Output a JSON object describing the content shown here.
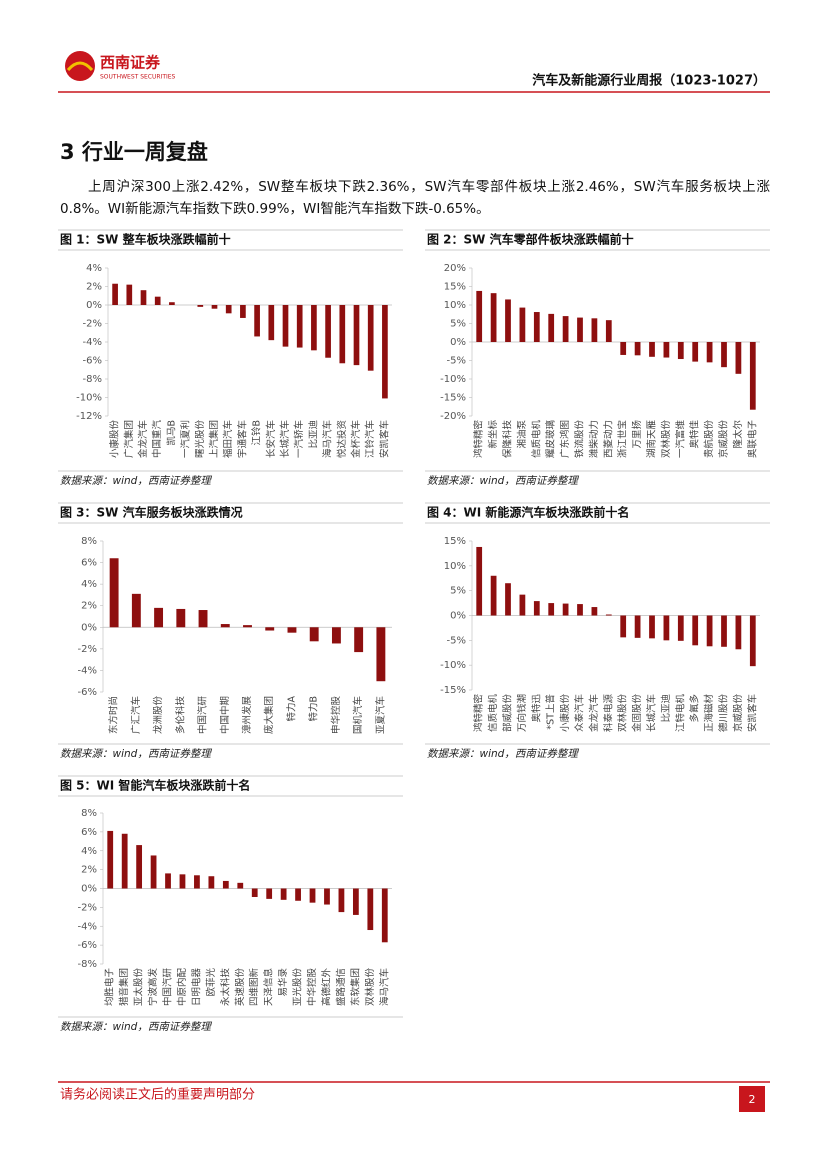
{
  "header": {
    "company": "西南证券",
    "company_en": "SOUTHWEST SECURITIES",
    "report_title": "汽车及新能源行业周报（1023-1027）"
  },
  "section_title": "3 行业一周复盘",
  "paragraph": "上周沪深300上涨2.42%，SW整车板块下跌2.36%，SW汽车零部件板块上涨2.46%，SW汽车服务板块上涨0.8%。WI新能源汽车指数下跌0.99%，WI智能汽车指数下跌-0.65%。",
  "chart_data": [
    {
      "type": "bar",
      "title": "图 1：SW 整车板块涨跌幅前十",
      "color": "#8e0f0f",
      "categories": [
        "小康股份",
        "广汽集团",
        "金龙汽车",
        "中国重汽",
        "凯马B",
        "一汽夏利",
        "曙光股份",
        "上汽集团",
        "福田汽车",
        "宇通客车",
        "江铃B",
        "长安汽车",
        "长城汽车",
        "一汽轿车",
        "比亚迪",
        "海马汽车",
        "悦达投资",
        "金杯汽车",
        "江铃汽车",
        "安凯客车"
      ],
      "values": [
        2.3,
        2.2,
        1.6,
        0.9,
        0.3,
        0,
        -0.2,
        -0.4,
        -0.9,
        -1.4,
        -3.4,
        -3.8,
        -4.5,
        -4.6,
        -4.9,
        -5.7,
        -6.3,
        -6.5,
        -7.1,
        -10.1
      ],
      "ylim": [
        -12,
        4
      ],
      "yticks": [
        {
          "value": -12,
          "label": "-12%"
        },
        {
          "value": -10,
          "label": "-10%"
        },
        {
          "value": -8,
          "label": "-8%"
        },
        {
          "value": -6,
          "label": "-6%"
        },
        {
          "value": -4,
          "label": "-4%"
        },
        {
          "value": -2,
          "label": "-2%"
        },
        {
          "value": 0,
          "label": "0%"
        },
        {
          "value": 2,
          "label": "2%"
        },
        {
          "value": 4,
          "label": "4%"
        }
      ],
      "source": "数据来源：wind，西南证券整理"
    },
    {
      "type": "bar",
      "title": "图 2：SW 汽车零部件板块涨跌幅前十",
      "color": "#8e0f0f",
      "categories": [
        "鸿特精密",
        "新坐标",
        "保隆科技",
        "湘油泵",
        "信质电机",
        "耀皮玻璃",
        "广东鸿图",
        "铁流股份",
        "潍柴动力",
        "西菱动力",
        "浙江世宝",
        "万里扬",
        "湖南天雁",
        "双林股份",
        "一汽富维",
        "奥特佳",
        "贵航股份",
        "京威股份",
        "隆太尔",
        "奥联电子"
      ],
      "values": [
        13.8,
        13.2,
        11.5,
        9.3,
        8.1,
        7.6,
        7.0,
        6.6,
        6.4,
        5.9,
        -3.5,
        -3.6,
        -4.0,
        -4.2,
        -4.6,
        -5.3,
        -5.5,
        -6.8,
        -8.6,
        -18.3
      ],
      "ylim": [
        -20,
        20
      ],
      "yticks": [
        {
          "value": -20,
          "label": "-20%"
        },
        {
          "value": -15,
          "label": "-15%"
        },
        {
          "value": -10,
          "label": "-10%"
        },
        {
          "value": -5,
          "label": "-5%"
        },
        {
          "value": 0,
          "label": "0%"
        },
        {
          "value": 5,
          "label": "5%"
        },
        {
          "value": 10,
          "label": "10%"
        },
        {
          "value": 15,
          "label": "15%"
        },
        {
          "value": 20,
          "label": "20%"
        }
      ],
      "source": "数据来源：wind，西南证券整理"
    },
    {
      "type": "bar",
      "title": "图 3：SW 汽车服务板块涨跌情况",
      "color": "#8e0f0f",
      "categories": [
        "东方时尚",
        "广汇汽车",
        "龙洲股份",
        "多伦科技",
        "中国汽研",
        "中国中期",
        "漳州发展",
        "庞大集团",
        "特力A",
        "特力B",
        "申华控股",
        "国机汽车",
        "亚夏汽车"
      ],
      "values": [
        6.4,
        3.1,
        1.8,
        1.7,
        1.6,
        0.3,
        0.2,
        -0.3,
        -0.5,
        -1.3,
        -1.5,
        -2.3,
        -5.0
      ],
      "ylim": [
        -6,
        8
      ],
      "yticks": [
        {
          "value": -6,
          "label": "-6%"
        },
        {
          "value": -4,
          "label": "-4%"
        },
        {
          "value": -2,
          "label": "-2%"
        },
        {
          "value": 0,
          "label": "0%"
        },
        {
          "value": 2,
          "label": "2%"
        },
        {
          "value": 4,
          "label": "4%"
        },
        {
          "value": 6,
          "label": "6%"
        },
        {
          "value": 8,
          "label": "8%"
        }
      ],
      "source": "数据来源：wind，西南证券整理"
    },
    {
      "type": "bar",
      "title": "图 4：WI 新能源汽车板块涨跌前十名",
      "color": "#8e0f0f",
      "categories": [
        "鸿特精密",
        "信质电机",
        "部威股份",
        "万向钱潮",
        "奥特迅",
        "*ST上普",
        "小康股份",
        "众泰汽车",
        "金龙汽车",
        "科泰电源",
        "双林股份",
        "金固股份",
        "长城汽车",
        "比亚迪",
        "江特电机",
        "多氟多",
        "正海磁材",
        "德川股份",
        "京威股份",
        "安凯客车"
      ],
      "values": [
        13.8,
        8.0,
        6.5,
        4.2,
        2.9,
        2.5,
        2.4,
        2.3,
        1.7,
        0.2,
        -4.4,
        -4.5,
        -4.6,
        -5.0,
        -5.1,
        -6.0,
        -6.2,
        -6.3,
        -6.8,
        -10.2
      ],
      "ylim": [
        -15,
        15
      ],
      "yticks": [
        {
          "value": -15,
          "label": "-15%"
        },
        {
          "value": -10,
          "label": "-10%"
        },
        {
          "value": -5,
          "label": "-5%"
        },
        {
          "value": 0,
          "label": "0%"
        },
        {
          "value": 5,
          "label": "5%"
        },
        {
          "value": 10,
          "label": "10%"
        },
        {
          "value": 15,
          "label": "15%"
        }
      ],
      "source": "数据来源：wind，西南证券整理"
    },
    {
      "type": "bar",
      "title": "图 5：WI 智能汽车板块涨跌前十名",
      "color": "#8e0f0f",
      "categories": [
        "均胜电子",
        "猎音集团",
        "亚太股份",
        "宁波高发",
        "中国汽研",
        "中原内配",
        "日明电器",
        "欧菲光",
        "永太科技",
        "英速股份",
        "四维图新",
        "天泽信息",
        "易华录",
        "亚光股份",
        "中华控股",
        "高德红外",
        "盛路通信",
        "东软集团",
        "双林股份",
        "海马汽车"
      ],
      "values": [
        6.1,
        5.8,
        4.6,
        3.5,
        1.6,
        1.5,
        1.4,
        1.3,
        0.8,
        0.6,
        -0.9,
        -1.1,
        -1.2,
        -1.3,
        -1.5,
        -1.7,
        -2.5,
        -2.8,
        -4.4,
        -5.7
      ],
      "ylim": [
        -8,
        8
      ],
      "yticks": [
        {
          "value": -8,
          "label": "-8%"
        },
        {
          "value": -6,
          "label": "-6%"
        },
        {
          "value": -4,
          "label": "-4%"
        },
        {
          "value": -2,
          "label": "-2%"
        },
        {
          "value": 0,
          "label": "0%"
        },
        {
          "value": 2,
          "label": "2%"
        },
        {
          "value": 4,
          "label": "4%"
        },
        {
          "value": 6,
          "label": "6%"
        },
        {
          "value": 8,
          "label": "8%"
        }
      ],
      "source": "数据来源：wind，西南证券整理"
    }
  ],
  "footer": {
    "disclaimer": "请务必阅读正文后的重要声明部分",
    "page": 2
  }
}
